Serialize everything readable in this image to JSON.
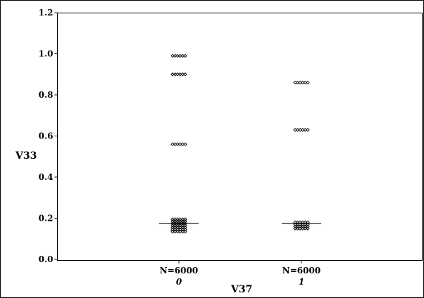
{
  "chart_data": {
    "type": "scatter",
    "xlabel": "V37",
    "ylabel": "V33",
    "ylim": [
      0.0,
      1.2
    ],
    "yticks": [
      "0.0",
      "0.2",
      "0.4",
      "0.6",
      "0.8",
      "1.0",
      "1.2"
    ],
    "grid": false,
    "categories": [
      {
        "label": "0",
        "n_label": "N=6000",
        "median": 0.175,
        "clusters": [
          {
            "y": 0.99,
            "count": 6
          },
          {
            "y": 0.9,
            "count": 6
          },
          {
            "y": 0.56,
            "count": 6
          },
          {
            "y": 0.195,
            "count": 6
          },
          {
            "y": 0.185,
            "count": 6
          },
          {
            "y": 0.175,
            "count": 6
          },
          {
            "y": 0.165,
            "count": 6
          },
          {
            "y": 0.155,
            "count": 6
          },
          {
            "y": 0.145,
            "count": 6
          },
          {
            "y": 0.135,
            "count": 6
          }
        ]
      },
      {
        "label": "1",
        "n_label": "N=6000",
        "median": 0.175,
        "clusters": [
          {
            "y": 0.86,
            "count": 6
          },
          {
            "y": 0.63,
            "count": 6
          },
          {
            "y": 0.18,
            "count": 6
          },
          {
            "y": 0.17,
            "count": 6
          },
          {
            "y": 0.16,
            "count": 6
          },
          {
            "y": 0.15,
            "count": 6
          }
        ]
      }
    ]
  }
}
